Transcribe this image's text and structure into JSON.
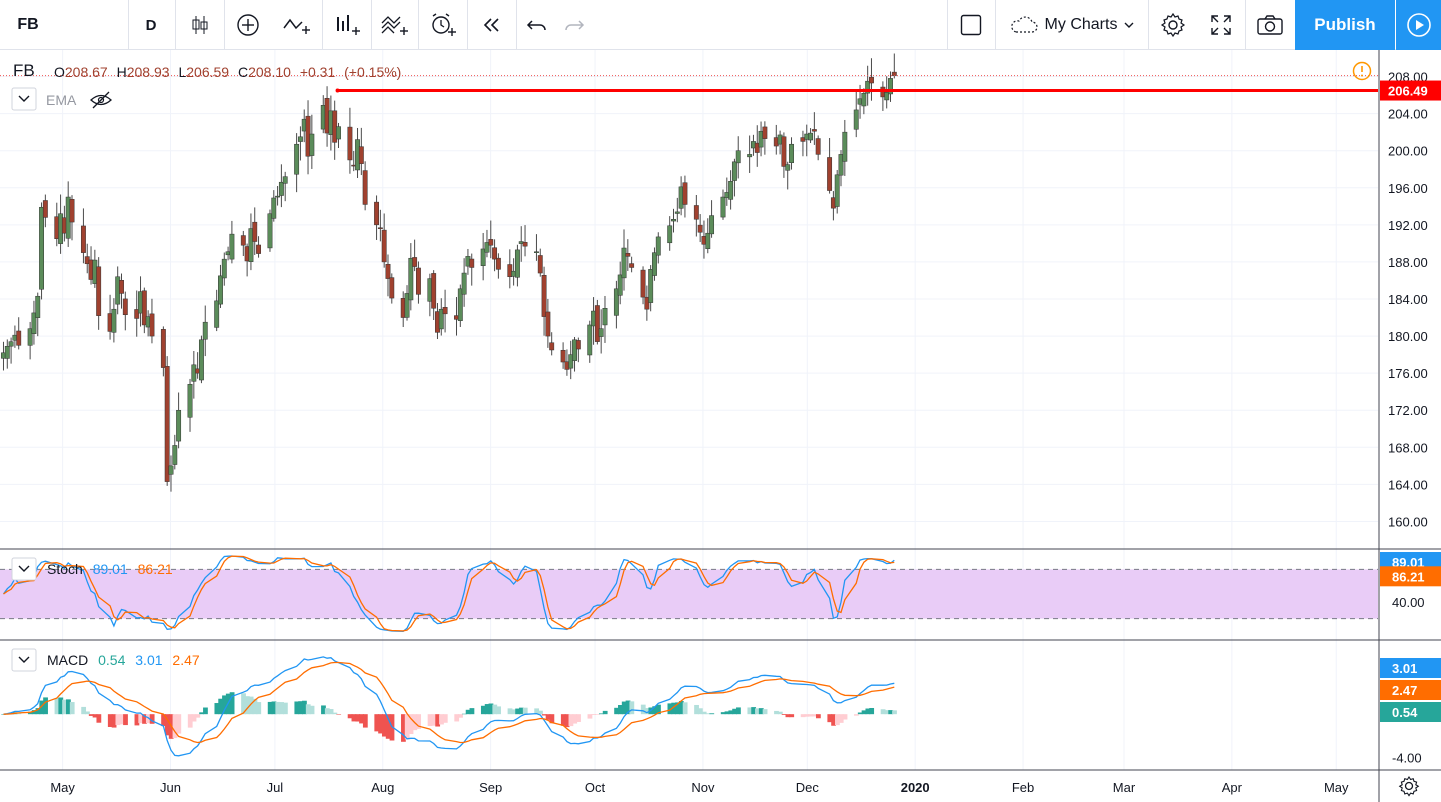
{
  "toolbar": {
    "symbol": "FB",
    "interval": "D",
    "my_charts_label": "My Charts",
    "publish_label": "Publish"
  },
  "legend": {
    "symbol": "FB",
    "open_label": "O",
    "open": "208.67",
    "high_label": "H",
    "high": "208.93",
    "low_label": "L",
    "low": "206.59",
    "close_label": "C",
    "close": "208.10",
    "change": "+0.31",
    "change_pct": "(+0.15%)",
    "ema_label": "EMA"
  },
  "stoch": {
    "label": "Stoch",
    "k": "89.01",
    "d": "86.21",
    "k_color": "#2196f3",
    "d_color": "#ff6d00",
    "band_upper": 80,
    "band_lower": 20,
    "band_fill": "#e9ccf7",
    "axis_ticks": [
      40
    ]
  },
  "macd": {
    "label": "MACD",
    "hist": "0.54",
    "macd": "3.01",
    "signal": "2.47",
    "macd_color": "#2196f3",
    "signal_color": "#ff6d00",
    "hist_up": "#26a69a",
    "hist_down": "#ef5350",
    "axis_ticks": [
      -4
    ],
    "axis_tick_labels": [
      "-4.00"
    ],
    "ylim": [
      -4.8,
      6.5
    ]
  },
  "colors": {
    "candle_up": "#5b8c5a",
    "candle_down": "#a0412f",
    "wick": "#4a4a4a",
    "hline": "#ff0000",
    "accent": "#2196f3"
  },
  "chart_data": {
    "type": "candlestick",
    "symbol": "FB",
    "interval": "D",
    "ylim": [
      158,
      210
    ],
    "y_ticks": [
      160,
      164,
      168,
      172,
      176,
      180,
      184,
      188,
      192,
      196,
      200,
      204,
      208
    ],
    "y_tick_labels": [
      "160.00",
      "164.00",
      "168.00",
      "172.00",
      "176.00",
      "180.00",
      "184.00",
      "188.00",
      "192.00",
      "196.00",
      "200.00",
      "204.00",
      "208.00"
    ],
    "x_labels": [
      {
        "label": "May",
        "day": 0
      },
      {
        "label": "Jun",
        "day": 31
      },
      {
        "label": "Jul",
        "day": 61
      },
      {
        "label": "Aug",
        "day": 92
      },
      {
        "label": "Sep",
        "day": 123
      },
      {
        "label": "Oct",
        "day": 153
      },
      {
        "label": "Nov",
        "day": 184
      },
      {
        "label": "Dec",
        "day": 214
      },
      {
        "label": "2020",
        "day": 245
      },
      {
        "label": "Feb",
        "day": 276
      },
      {
        "label": "Mar",
        "day": 305
      },
      {
        "label": "Apr",
        "day": 336
      },
      {
        "label": "May",
        "day": 366
      }
    ],
    "xlim_days": [
      -18,
      378
    ],
    "horizontal_line": {
      "price": 206.49,
      "label": "206.49",
      "start_day": 79
    },
    "last_close": 208.1,
    "closes": [
      178.2,
      178.9,
      179.4,
      180.1,
      179.0,
      180.8,
      182.5,
      184.3,
      193.9,
      192.8,
      190.5,
      193.2,
      191.1,
      195.0,
      192.3,
      189.0,
      187.8,
      186.1,
      188.2,
      182.2,
      180.5,
      182.9,
      186.4,
      184.6,
      182.3,
      181.9,
      184.8,
      181.2,
      182.1,
      180.0,
      176.6,
      164.3,
      166.0,
      168.2,
      172.0,
      174.8,
      176.9,
      176.0,
      179.6,
      181.5,
      183.8,
      186.5,
      188.3,
      189.1,
      191.0,
      189.8,
      188.1,
      191.6,
      190.2,
      188.9,
      193.2,
      194.9,
      195.1,
      196.6,
      197.2,
      200.7,
      201.5,
      203.4,
      199.4,
      201.8,
      204.9,
      201.9,
      204.3,
      200.9,
      202.6,
      199.0,
      198.4,
      201.2,
      198.6,
      194.2,
      192.0,
      191.6,
      188.0,
      186.2,
      184.1,
      182.0,
      184.6,
      188.4,
      187.5,
      184.5,
      186.2,
      183.0,
      180.4,
      182.9,
      182.4,
      181.8,
      185.1,
      186.8,
      188.6,
      187.4,
      189.4,
      190.1,
      189.8,
      188.3,
      187.2,
      186.4,
      187.0,
      189.3,
      190.2,
      189.7,
      189.1,
      186.8,
      182.1,
      180.0,
      178.5,
      177.2,
      176.4,
      178.0,
      179.6,
      178.6,
      181.2,
      182.7,
      179.4,
      180.8,
      183.0,
      185.1,
      186.6,
      189.5,
      188.6,
      187.4,
      184.2,
      182.9,
      187.2,
      189.0,
      190.7,
      191.9,
      192.6,
      193.4,
      196.1,
      194.2,
      192.6,
      191.2,
      189.9,
      191.1,
      193.0,
      195.0,
      195.5,
      196.7,
      198.8,
      200.0,
      199.6,
      201.0,
      199.8,
      202.1,
      201.3,
      200.5,
      201.7,
      198.3,
      198.5,
      200.7,
      201.0,
      201.8,
      201.9,
      202.1,
      199.6,
      195.7,
      193.8,
      197.4,
      199.6,
      202.0,
      204.4,
      205.6,
      206.2,
      207.5,
      207.3,
      205.8,
      206.3,
      207.8,
      208.1
    ]
  }
}
